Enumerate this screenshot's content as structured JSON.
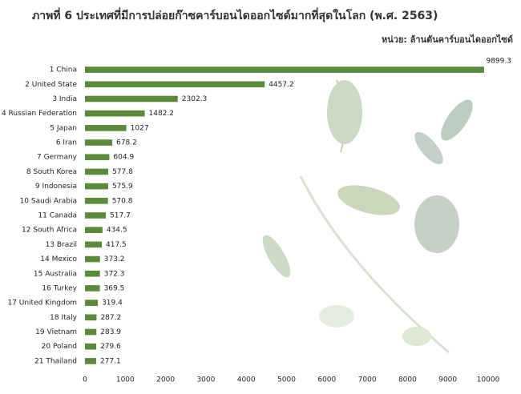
{
  "chart_data": {
    "type": "bar",
    "orientation": "horizontal",
    "title": "ภาพที่ 6 ประเทศที่มีการปล่อยก๊าซคาร์บอนไดออกไซด์มากที่สุดในโลก (พ.ศ. 2563)",
    "subtitle": "หน่วย: ล้านตันคาร์บอนไดออกไซด์",
    "categories": [
      "1 China",
      "2 United State",
      "3 India",
      "4 Russian Federation",
      "5 Japan",
      "6 Iran",
      "7 Germany",
      "8 South Korea",
      "9 Indonesia",
      "10 Saudi Arabia",
      "11 Canada",
      "12 South Africa",
      "13 Brazil",
      "14 Mexico",
      "15 Australia",
      "16 Turkey",
      "17 United Kingdom",
      "18 Italy",
      "19 Vietnam",
      "20 Poland",
      "21 Thailand"
    ],
    "values": [
      9899.3,
      4457.2,
      2302.3,
      1482.2,
      1027,
      678.2,
      604.9,
      577.8,
      575.9,
      570.8,
      517.7,
      434.5,
      417.5,
      373.2,
      372.3,
      369.5,
      319.4,
      287.2,
      283.9,
      279.6,
      277.1
    ],
    "color": "#5b8a3c",
    "xlim": [
      0,
      10000
    ],
    "xticks": [
      0,
      1000,
      2000,
      3000,
      4000,
      5000,
      6000,
      7000,
      8000,
      9000,
      10000
    ],
    "grid": false
  }
}
